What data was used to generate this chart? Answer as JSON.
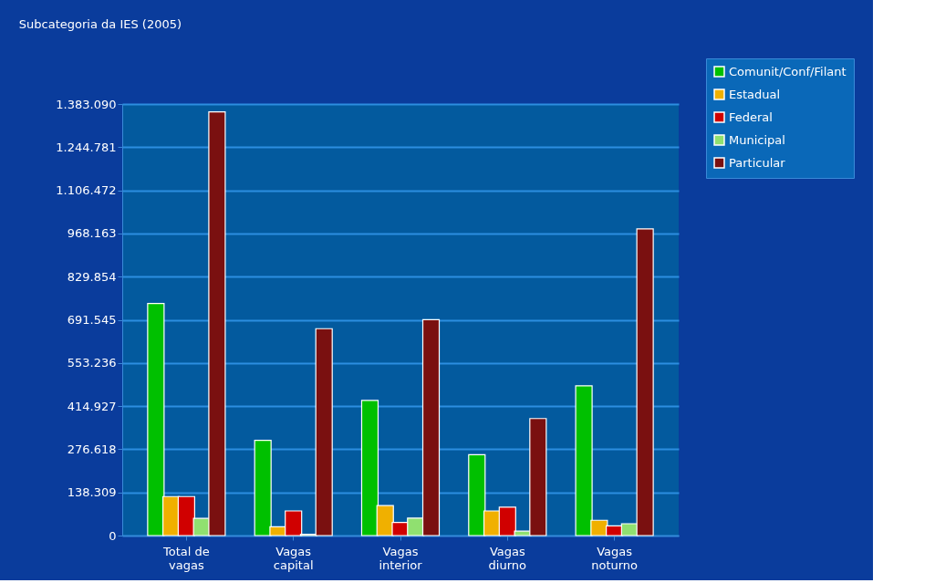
{
  "chart_data": {
    "type": "bar",
    "title": "Subcategoria da IES (2005)",
    "categories": [
      "Total de vagas",
      "Vagas capital",
      "Vagas interior",
      "Vagas diurno",
      "Vagas noturno"
    ],
    "series": [
      {
        "name": "Comunit/Conf/Filant",
        "color": "#00c000",
        "values": [
          744000,
          305000,
          433000,
          259000,
          480000
        ]
      },
      {
        "name": "Estadual",
        "color": "#f0b000",
        "values": [
          125000,
          28000,
          96000,
          79000,
          49000
        ]
      },
      {
        "name": "Federal",
        "color": "#d00000",
        "values": [
          125000,
          79000,
          42000,
          91000,
          31000
        ]
      },
      {
        "name": "Municipal",
        "color": "#90e070",
        "values": [
          55000,
          4000,
          56000,
          14000,
          38000
        ]
      },
      {
        "name": "Particular",
        "color": "#7a1010",
        "values": [
          1358000,
          663000,
          692000,
          375000,
          983000
        ]
      }
    ],
    "ylim": [
      0,
      1383090
    ],
    "yticks": [
      0,
      {
        "value": 138309,
        "label": "138.309"
      },
      {
        "value": 276618,
        "label": "276.618"
      },
      {
        "value": 414927,
        "label": "414.927"
      },
      {
        "value": 553236,
        "label": "553.236"
      },
      {
        "value": 691545,
        "label": "691.545"
      },
      {
        "value": 829854,
        "label": "829.854"
      },
      {
        "value": 968163,
        "label": "968.163"
      },
      {
        "value": 1106472,
        "label": "1.106.472"
      },
      {
        "value": 1244781,
        "label": "1.244.781"
      },
      {
        "value": 1383090,
        "label": "1.383.090"
      }
    ],
    "grid": "y",
    "legend": "top right"
  }
}
